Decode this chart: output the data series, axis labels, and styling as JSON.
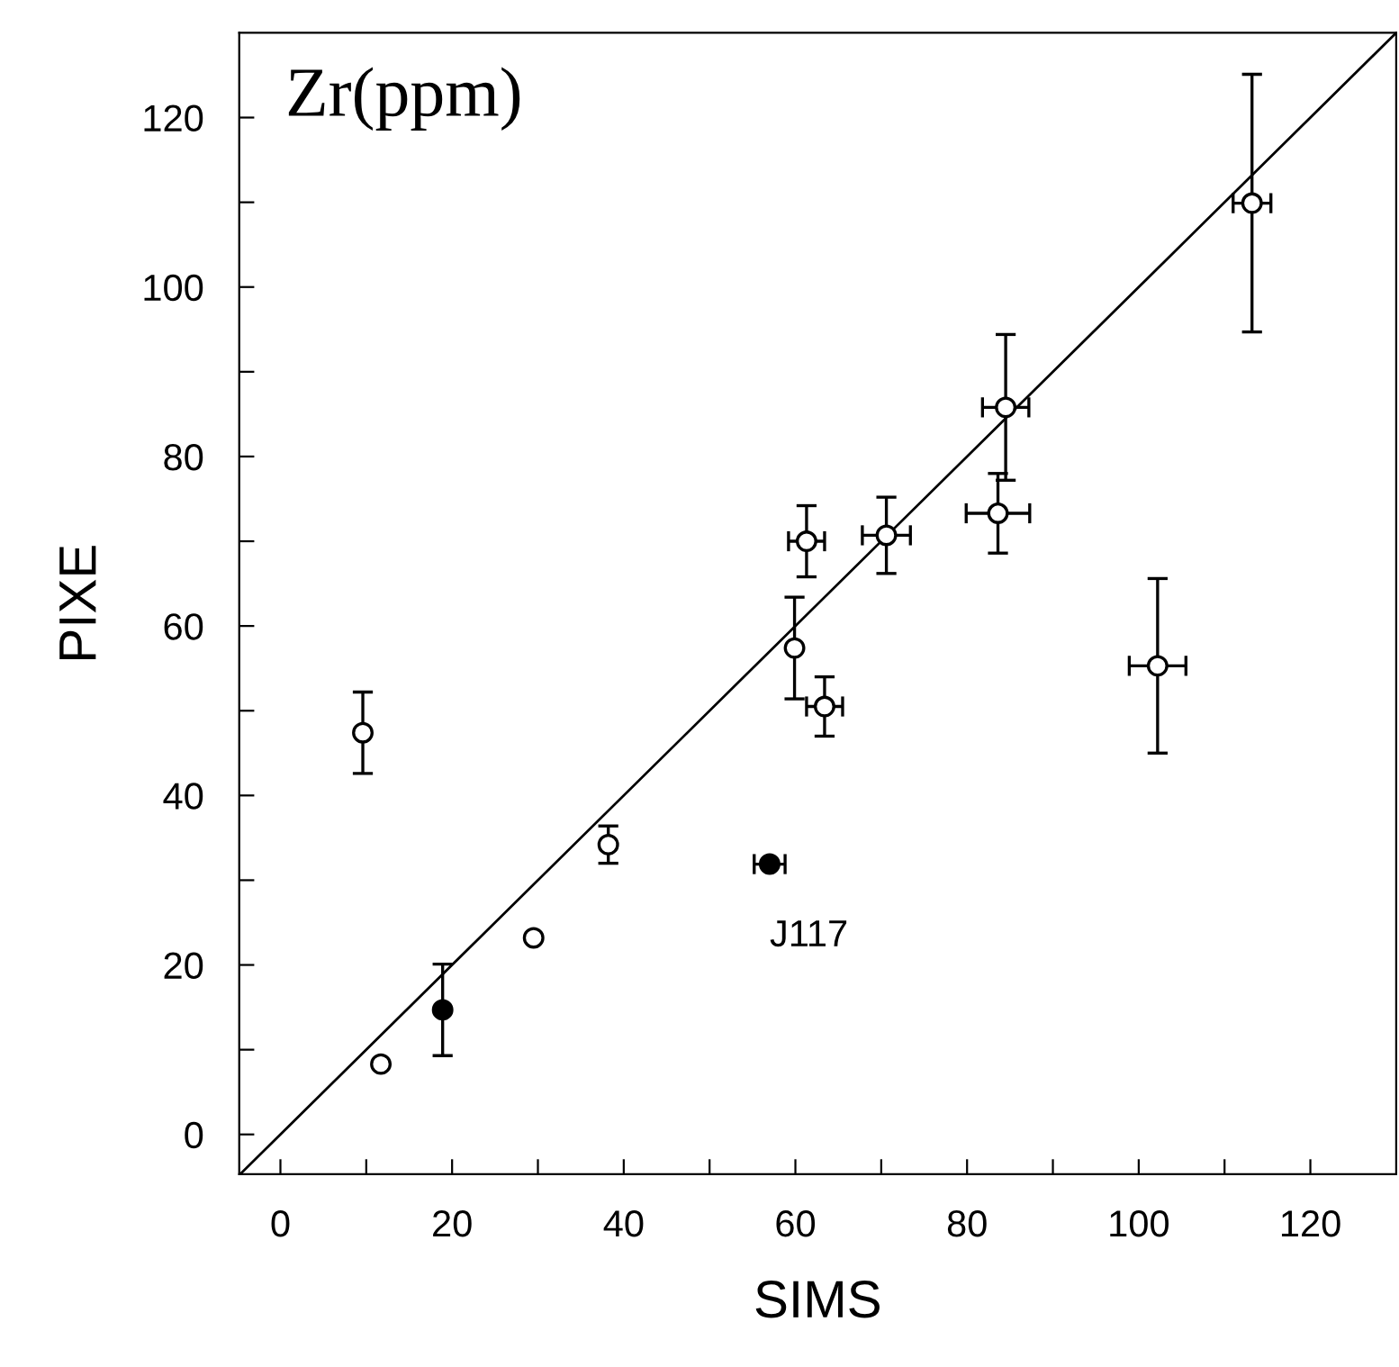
{
  "chart_data": {
    "type": "scatter",
    "title": "Zr(ppm)",
    "xlabel": "SIMS",
    "ylabel": "PIXE",
    "xlim": [
      -4.8,
      130
    ],
    "ylim": [
      -4.7,
      130
    ],
    "xticks": [
      0,
      {
        "value": 10,
        "label": null
      },
      20,
      {
        "value": 30,
        "label": null
      },
      40,
      {
        "value": 50,
        "label": null
      },
      60,
      {
        "value": 70,
        "label": null
      },
      80,
      {
        "value": 90,
        "label": null
      },
      100,
      {
        "value": 110,
        "label": null
      },
      120
    ],
    "yticks": [
      0,
      {
        "value": 10,
        "label": null
      },
      20,
      {
        "value": 30,
        "label": null
      },
      40,
      {
        "value": 50,
        "label": null
      },
      60,
      {
        "value": 70,
        "label": null
      },
      80,
      {
        "value": 90,
        "label": null
      },
      100,
      {
        "value": 110,
        "label": null
      },
      120
    ],
    "grid": false,
    "legend": false,
    "marker": "circle",
    "annotations": [
      {
        "text": "J117",
        "x": 57.0,
        "y": 31.9
      }
    ],
    "series": [
      {
        "type": "line",
        "color": "#000000",
        "marker": "none",
        "line_style": "solid",
        "x": [
          -4.7,
          130
        ],
        "values": [
          -4.7,
          130
        ]
      },
      {
        "color": "#ffffff",
        "x": [
          9.6,
          11.7,
          29.5,
          38.2,
          61.3,
          59.9,
          63.4,
          70.6,
          84.5,
          83.6,
          102.2,
          113.2
        ],
        "values": [
          47.4,
          8.3,
          23.2,
          34.2,
          70.0,
          57.4,
          50.5,
          70.7,
          85.8,
          73.3,
          55.3,
          109.9
        ],
        "errors": [
          4.8,
          null,
          null,
          2.2,
          4.2,
          6.0,
          3.5,
          4.5,
          8.6,
          4.7,
          10.3,
          15.2
        ],
        "xerrors": [
          null,
          null,
          null,
          null,
          2.1,
          null,
          2.1,
          2.8,
          2.7,
          3.7,
          3.3,
          2.2
        ]
      },
      {
        "color": "#000000",
        "x": [
          18.9,
          57.0
        ],
        "values": [
          14.7,
          31.9
        ],
        "errors": [
          5.4,
          null
        ],
        "xerrors": [
          null,
          1.8
        ]
      }
    ]
  }
}
